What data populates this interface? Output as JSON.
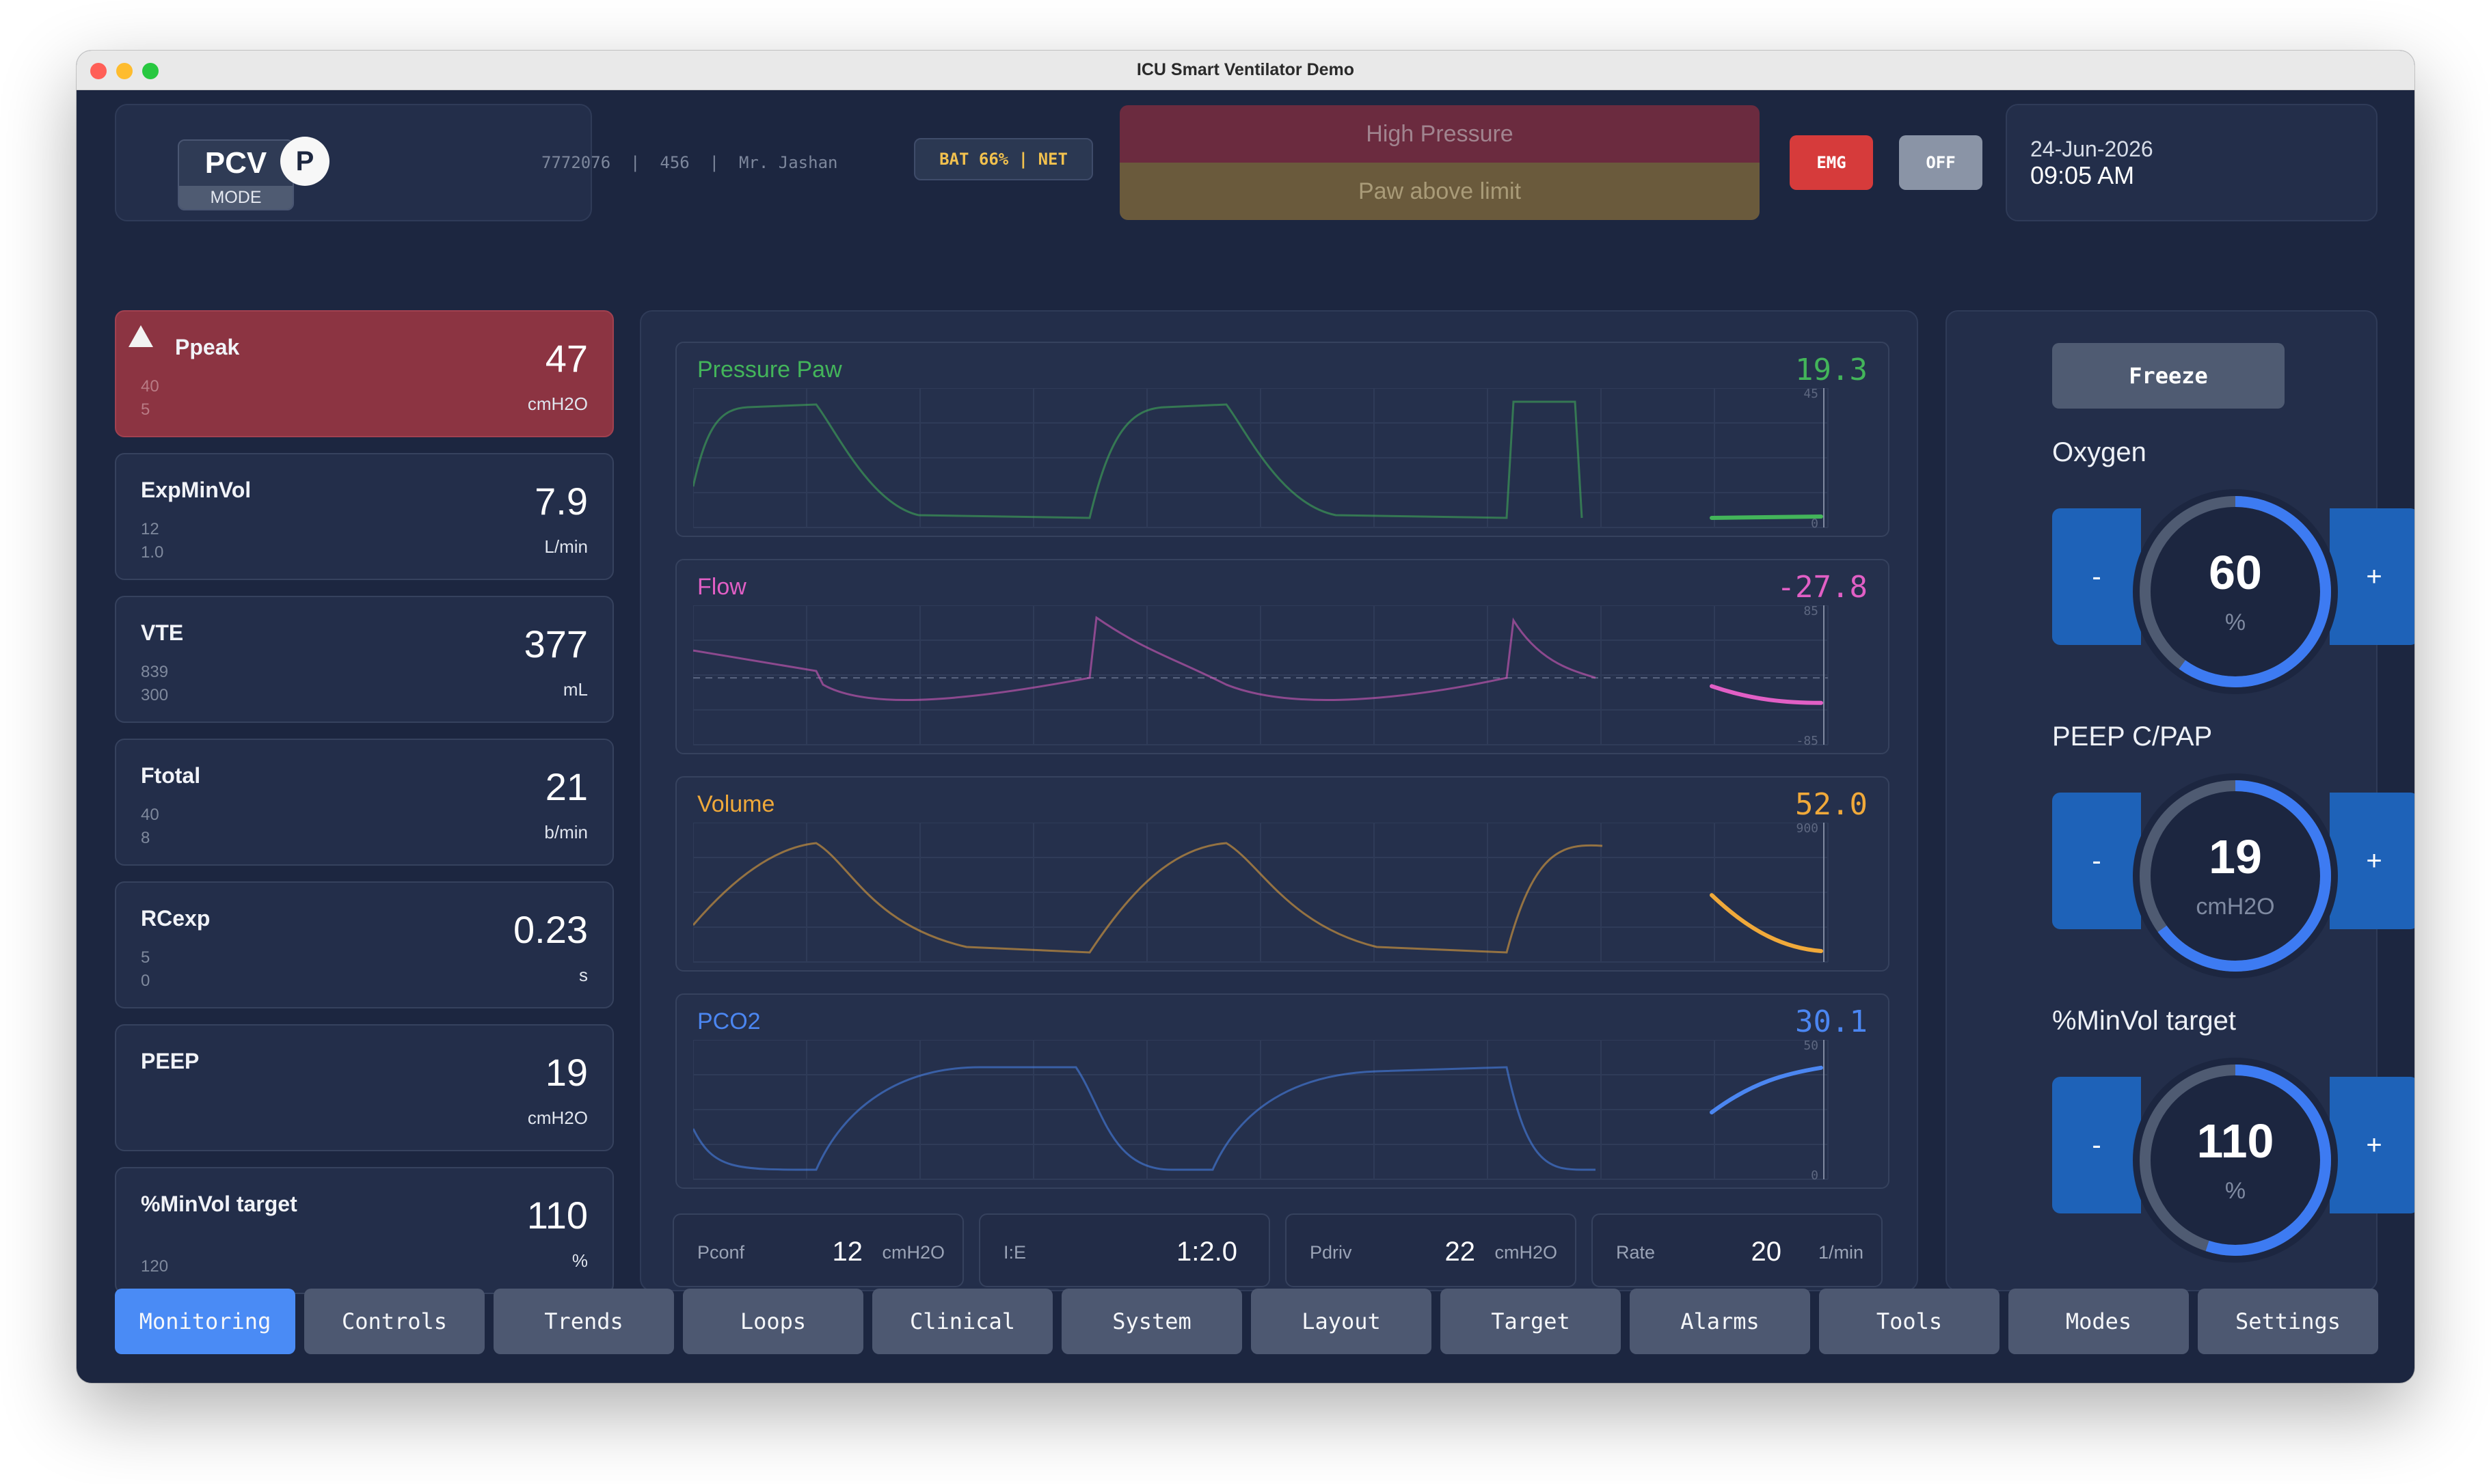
{
  "window": {
    "title": "ICU Smart Ventilator Demo"
  },
  "header": {
    "mode": "PCV",
    "mode_label": "MODE",
    "badge_letter": "P",
    "patient_info": "7772076  |  456  |  Mr. Jashan",
    "status_badge": "BAT 66% | NET",
    "alarm_high": "High Pressure",
    "alarm_medium": "Paw above limit",
    "emg_button": "EMG",
    "off_button": "OFF",
    "date": "24-Jun-2026",
    "time": "09:05 AM"
  },
  "parameters": [
    {
      "name": "Ppeak",
      "high": "40",
      "low": "5",
      "value": "47",
      "unit": "cmH2O",
      "alarm": true
    },
    {
      "name": "ExpMinVol",
      "high": "12",
      "low": "1.0",
      "value": "7.9",
      "unit": "L/min",
      "alarm": false
    },
    {
      "name": "VTE",
      "high": "839",
      "low": "300",
      "value": "377",
      "unit": "mL",
      "alarm": false
    },
    {
      "name": "Ftotal",
      "high": "40",
      "low": "8",
      "value": "21",
      "unit": "b/min",
      "alarm": false
    },
    {
      "name": "RCexp",
      "high": "5",
      "low": "0",
      "value": "0.23",
      "unit": "s",
      "alarm": false
    },
    {
      "name": "PEEP",
      "high": "",
      "low": "",
      "value": "19",
      "unit": "cmH2O",
      "alarm": false
    },
    {
      "name": "%MinVol target",
      "high": "120",
      "low": "",
      "value": "110",
      "unit": "%",
      "alarm": false
    }
  ],
  "waveforms": [
    {
      "label": "Pressure Paw",
      "value": "19.3",
      "color": "#43b55a",
      "scale_top": "45",
      "scale_bottom": "0"
    },
    {
      "label": "Flow",
      "value": "-27.8",
      "color": "#e15fc5",
      "scale_top": "85",
      "scale_bottom": "-85"
    },
    {
      "label": "Volume",
      "value": "52.0",
      "color": "#f0a93a",
      "scale_top": "900",
      "scale_bottom": ""
    },
    {
      "label": "PCO2",
      "value": "30.1",
      "color": "#4b86f1",
      "scale_top": "50",
      "scale_bottom": "0"
    }
  ],
  "summary": [
    {
      "label": "Pconf",
      "value": "12",
      "unit": "cmH2O"
    },
    {
      "label": "I:E",
      "value": "1:2.0",
      "unit": ""
    },
    {
      "label": "Pdriv",
      "value": "22",
      "unit": "cmH2O"
    },
    {
      "label": "Rate",
      "value": "20",
      "unit": "1/min"
    }
  ],
  "controls": {
    "freeze_label": "Freeze",
    "items": [
      {
        "title": "Oxygen",
        "value": "60",
        "unit": "%",
        "minus": "-",
        "plus": "+",
        "fraction": 0.6
      },
      {
        "title": "PEEP C/PAP",
        "value": "19",
        "unit": "cmH2O",
        "minus": "-",
        "plus": "+",
        "fraction": 0.65
      },
      {
        "title": "%MinVol target",
        "value": "110",
        "unit": "%",
        "minus": "-",
        "plus": "+",
        "fraction": 0.55
      }
    ]
  },
  "nav": [
    "Monitoring",
    "Controls",
    "Trends",
    "Loops",
    "Clinical",
    "System",
    "Layout",
    "Target",
    "Alarms",
    "Tools",
    "Modes",
    "Settings"
  ],
  "colors": {
    "accent": "#4a8bf5",
    "alarm_red": "#8c3442",
    "dial_blue": "#3d7bf2"
  }
}
